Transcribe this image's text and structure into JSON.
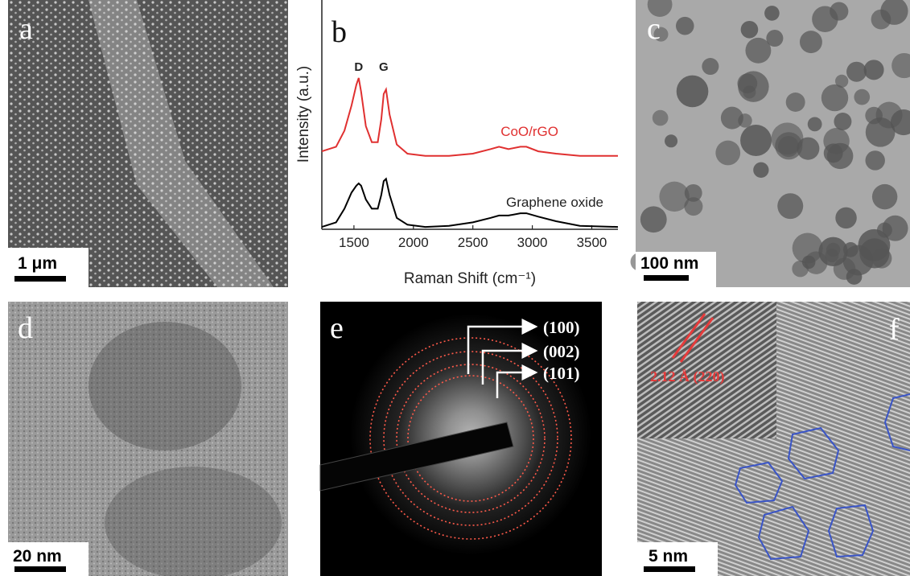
{
  "panels": [
    {
      "label": "a",
      "scale_bar": "1 μm"
    },
    {
      "label": "b"
    },
    {
      "label": "c",
      "scale_bar": "100 nm"
    },
    {
      "label": "d",
      "scale_bar": "20 nm"
    },
    {
      "label": "e",
      "planes": [
        "(100)",
        "(002)",
        "(101)"
      ]
    },
    {
      "label": "f",
      "scale_bar": "5 nm",
      "inset_annotation": "2.12 Å (220)"
    }
  ],
  "chart_data": {
    "type": "line",
    "x_label": "Raman Shift (cm⁻¹)",
    "y_label": "Intensity (a.u.)",
    "x": [
      1230,
      1350,
      1420,
      1480,
      1520,
      1540,
      1560,
      1600,
      1650,
      1700,
      1730,
      1750,
      1770,
      1800,
      1860,
      1950,
      2100,
      2300,
      2500,
      2650,
      2720,
      2800,
      2900,
      2950,
      3050,
      3200,
      3400,
      3720
    ],
    "xlim": [
      1230,
      3720
    ],
    "xticks": [
      1500,
      2000,
      2500,
      3000,
      3500
    ],
    "ylim": [
      0,
      10
    ],
    "series": [
      {
        "name": "CoO/rGO",
        "color": "#e03030",
        "values": [
          3.4,
          3.6,
          4.3,
          5.4,
          6.3,
          6.6,
          6.0,
          4.5,
          3.8,
          3.8,
          4.8,
          5.9,
          6.1,
          5.0,
          3.7,
          3.3,
          3.2,
          3.2,
          3.3,
          3.5,
          3.6,
          3.5,
          3.6,
          3.6,
          3.4,
          3.3,
          3.2,
          3.2
        ]
      },
      {
        "name": "Graphene oxide",
        "color": "#000000",
        "values": [
          0.1,
          0.3,
          0.9,
          1.6,
          1.9,
          2.0,
          1.9,
          1.3,
          0.9,
          0.9,
          1.5,
          2.1,
          2.2,
          1.5,
          0.5,
          0.2,
          0.1,
          0.15,
          0.3,
          0.5,
          0.6,
          0.6,
          0.7,
          0.7,
          0.55,
          0.35,
          0.15,
          0.1
        ]
      }
    ],
    "annotations": [
      {
        "text": "D",
        "x": 1540
      },
      {
        "text": "G",
        "x": 1750
      }
    ]
  }
}
